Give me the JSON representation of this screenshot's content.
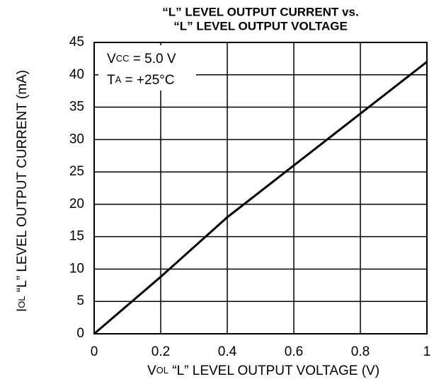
{
  "chart_data": {
    "type": "line",
    "title": [
      "“L” LEVEL OUTPUT CURRENT vs.",
      "“L” LEVEL OUTPUT VOLTAGE"
    ],
    "xlabel": {
      "symbol": "V",
      "subscript": "OL",
      "text": " “L” LEVEL OUTPUT VOLTAGE (V)"
    },
    "ylabel": {
      "symbol": "I",
      "subscript": "OL",
      "text": " “L” LEVEL OUTPUT CURRENT (mA)"
    },
    "annotations": [
      {
        "symbol": "V",
        "subscript": "CC",
        "text": " = 5.0 V"
      },
      {
        "symbol": "T",
        "subscript": "A",
        "text": " = +25°C"
      }
    ],
    "x": [
      0,
      0.2,
      0.4,
      0.6,
      0.8,
      1
    ],
    "series": [
      {
        "color": "#000000",
        "values": [
          0,
          8.8,
          18,
          26,
          34,
          42
        ]
      }
    ],
    "xlim": [
      0,
      1
    ],
    "xticks": [
      0,
      0.2,
      0.4,
      0.6,
      0.8,
      1
    ],
    "ylim": [
      0,
      45
    ],
    "yticks": [
      0,
      5,
      10,
      15,
      20,
      25,
      30,
      35,
      40,
      45
    ],
    "grid": true
  }
}
